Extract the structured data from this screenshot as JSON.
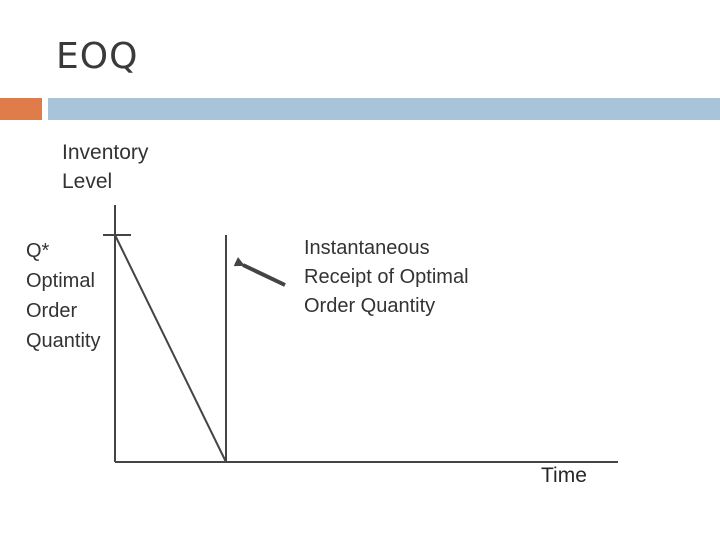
{
  "slide": {
    "title": "EOQ"
  },
  "colors": {
    "accent": "#e07b4a",
    "rule": "#a8c4d8",
    "line": "#444444"
  },
  "diagram": {
    "y_axis_label": [
      "Inventory",
      "Level"
    ],
    "x_axis_label": "Time",
    "q_label": [
      "Q*",
      "Optimal",
      "Order",
      "Quantity"
    ],
    "receipt_label": [
      "Instantaneous",
      "Receipt of Optimal",
      "Order Quantity"
    ]
  }
}
